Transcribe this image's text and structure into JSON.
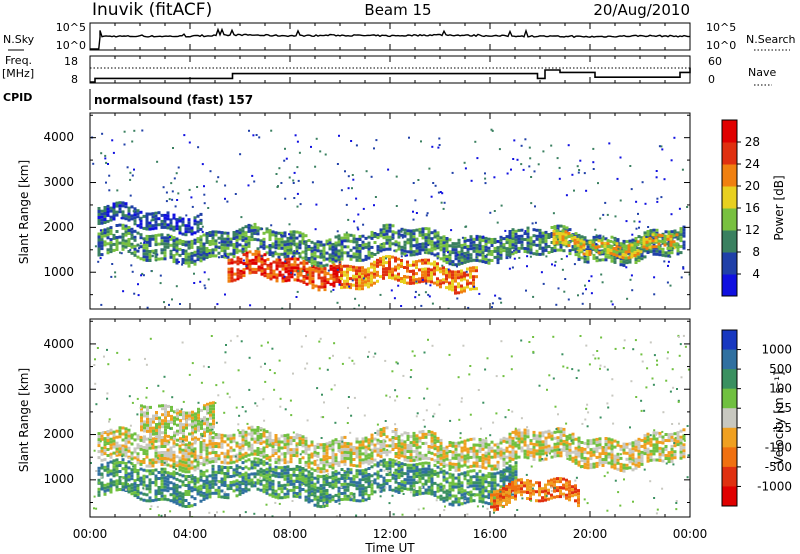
{
  "header": {
    "station": "Inuvik  (fitACF)",
    "beam": "Beam 15",
    "date": "20/Aug/2010"
  },
  "noise_panel": {
    "left_label": "N.Sky",
    "right_label": "N.Search",
    "y_tick_top": "10^5",
    "y_tick_bottom": "10^0",
    "right_tick_top": "10^5",
    "right_tick_bottom": "10^0"
  },
  "freq_panel": {
    "left_label_1": "Freq.",
    "left_label_2": "[MHz]",
    "cpid_label": "CPID",
    "right_label": "Nave",
    "y_tick_top": "18",
    "y_tick_bottom": "8",
    "right_tick_top": "60",
    "right_tick_bottom": "0"
  },
  "cpid_text": "normalsound (fast) 157",
  "power_panel": {
    "ylabel": "Slant Range [km]",
    "yticks": [
      "1000",
      "2000",
      "3000",
      "4000"
    ],
    "colorbar_label": "Power [dB]",
    "colorbar_ticks": [
      "4",
      "8",
      "12",
      "16",
      "20",
      "24",
      "28"
    ],
    "colors": [
      "#1010e0",
      "#2040a8",
      "#3a8060",
      "#78c040",
      "#e8d020",
      "#f08010",
      "#e03010",
      "#e00000"
    ]
  },
  "velocity_panel": {
    "ylabel": "Slant Range [km]",
    "yticks": [
      "1000",
      "2000",
      "3000",
      "4000"
    ],
    "colorbar_label": "Velocity [m s⁻¹]",
    "colorbar_ticks": [
      "1000",
      "500",
      "100",
      "25",
      "-25",
      "-100",
      "-500",
      "-1000"
    ],
    "colors": [
      "#1838c0",
      "#3070a0",
      "#3a9060",
      "#70c040",
      "#c8c8c0",
      "#f0a020",
      "#f07010",
      "#e03010",
      "#e00000"
    ]
  },
  "xaxis": {
    "ticks": [
      "00:00",
      "04:00",
      "08:00",
      "12:00",
      "16:00",
      "20:00",
      "00:00"
    ],
    "label": "Time UT"
  },
  "chart_data": [
    {
      "type": "line",
      "name": "noise",
      "x_unit": "hours UT",
      "x": [
        0,
        0.4,
        2,
        4,
        6,
        8,
        10,
        12,
        14,
        16,
        18,
        20,
        22,
        24
      ],
      "series": [
        {
          "name": "N.Sky",
          "y_log10": [
            0,
            2.5,
            2.5,
            2.5,
            2.8,
            2.6,
            2.7,
            2.6,
            2.8,
            2.6,
            2.5,
            2.4,
            2.6,
            2.5
          ]
        }
      ]
    },
    {
      "type": "line",
      "name": "frequency",
      "x_unit": "hours UT",
      "series": [
        {
          "name": "Freq.",
          "x": [
            0,
            0.2,
            5,
            5.7,
            17.9,
            18.2,
            18.8,
            20.2,
            23.6,
            24
          ],
          "y": [
            8,
            9.5,
            9.5,
            11.5,
            9.5,
            13,
            12,
            10,
            12,
            14
          ]
        }
      ],
      "ylim": [
        8,
        18
      ]
    },
    {
      "type": "heatmap",
      "name": "power",
      "xlabel": "Time UT",
      "ylabel": "Slant Range [km]",
      "xlim": [
        0,
        24
      ],
      "ylim": [
        180,
        4550
      ],
      "colorbar": {
        "label": "Power [dB]",
        "range": [
          0,
          32
        ]
      },
      "echo_bands": [
        {
          "hours": [
            0.3,
            23.8
          ],
          "range_km": [
            1350,
            1900
          ],
          "dB": 12
        },
        {
          "hours": [
            5.5,
            10.0
          ],
          "range_km": [
            800,
            1300
          ],
          "dB": 26
        },
        {
          "hours": [
            10.0,
            15.5
          ],
          "range_km": [
            700,
            1200
          ],
          "dB": 22
        },
        {
          "hours": [
            18.5,
            23.5
          ],
          "range_km": [
            1500,
            1800
          ],
          "dB": 20
        },
        {
          "hours": [
            0.3,
            4.5
          ],
          "range_km": [
            2000,
            2400
          ],
          "dB": 8
        }
      ]
    },
    {
      "type": "heatmap",
      "name": "velocity",
      "xlabel": "Time UT",
      "ylabel": "Slant Range [km]",
      "xlim": [
        0,
        24
      ],
      "ylim": [
        180,
        4550
      ],
      "colorbar": {
        "label": "Velocity [m s⁻¹]",
        "levels": [
          1000,
          500,
          100,
          25,
          -25,
          -100,
          -500,
          -1000
        ]
      },
      "echo_bands": [
        {
          "hours": [
            0.3,
            23.8
          ],
          "range_km": [
            1400,
            2000
          ],
          "m_s": 0
        },
        {
          "hours": [
            0.3,
            17.0
          ],
          "range_km": [
            600,
            1300
          ],
          "m_s": 200
        },
        {
          "hours": [
            16.0,
            19.5
          ],
          "range_km": [
            500,
            900
          ],
          "m_s": -300
        },
        {
          "hours": [
            2.0,
            5.0
          ],
          "range_km": [
            2000,
            2700
          ],
          "m_s": 0
        }
      ]
    }
  ]
}
